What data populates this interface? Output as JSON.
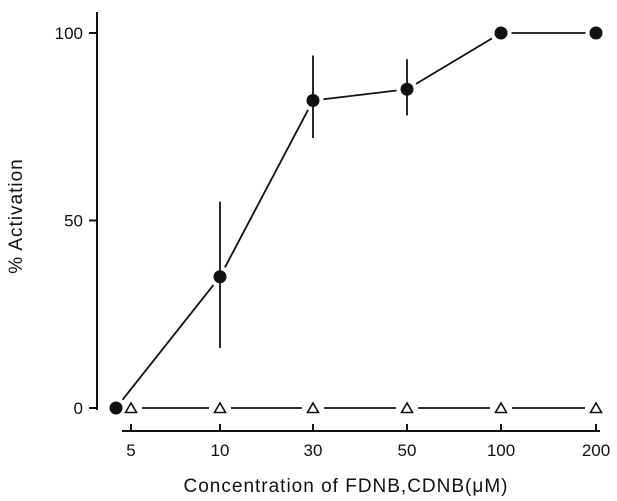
{
  "chart_data": {
    "type": "line",
    "xlabel": "Concentration of FDNB,CDNB(μM)",
    "ylabel": "% Activation",
    "x_scale": "categorical",
    "categories": [
      "5",
      "10",
      "30",
      "50",
      "100",
      "200"
    ],
    "ylim": [
      0,
      100
    ],
    "y_ticks": [
      "0",
      "50",
      "100"
    ],
    "grid": false,
    "legend": "none",
    "series": [
      {
        "marker": "filled-circle",
        "color": "#111111",
        "x": [
          "5",
          "10",
          "30",
          "50",
          "100",
          "200"
        ],
        "values": [
          0,
          35,
          82,
          85,
          100,
          100
        ],
        "error_low": [
          0,
          16,
          72,
          78,
          100,
          100
        ],
        "error_high": [
          0,
          55,
          94,
          93,
          100,
          100
        ]
      },
      {
        "marker": "open-triangle",
        "color": "#111111",
        "x": [
          "5",
          "10",
          "30",
          "50",
          "100",
          "200"
        ],
        "values": [
          0,
          0,
          0,
          0,
          0,
          0
        ]
      }
    ]
  }
}
